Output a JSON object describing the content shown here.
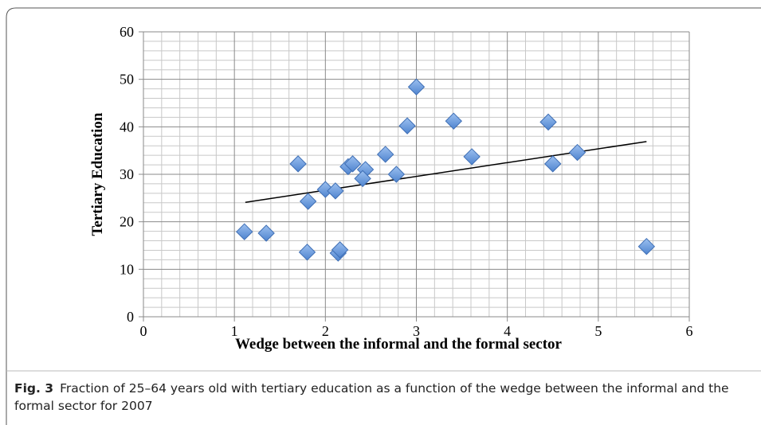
{
  "chart_data": {
    "type": "scatter",
    "xlabel": "Wedge between the informal and the formal sector",
    "ylabel": "Tertiary Education",
    "x": [
      1.11,
      1.35,
      1.8,
      1.7,
      1.81,
      2.0,
      2.11,
      2.14,
      2.16,
      2.25,
      2.3,
      2.44,
      2.41,
      2.66,
      2.78,
      2.9,
      3.0,
      3.41,
      3.61,
      4.45,
      4.5,
      4.77,
      5.53
    ],
    "values": [
      17.9,
      17.6,
      13.6,
      32.2,
      24.3,
      26.8,
      26.5,
      13.4,
      14.1,
      31.6,
      32.2,
      31.0,
      29.1,
      34.2,
      30.0,
      40.2,
      48.4,
      41.2,
      33.7,
      41.0,
      32.2,
      34.6,
      14.8
    ],
    "color": "#6a9be0",
    "trendline": {
      "x": [
        1.12,
        5.53
      ],
      "y": [
        24.1,
        36.9
      ],
      "color": "#000000"
    },
    "xlim": [
      0,
      6
    ],
    "ylim": [
      0,
      60
    ],
    "xticks": [
      0,
      1,
      2,
      3,
      4,
      5,
      6
    ],
    "yticks": [
      0,
      10,
      20,
      30,
      40,
      50,
      60
    ],
    "xminor": [
      0.2,
      0.4,
      0.6,
      0.8,
      1.2,
      1.4,
      1.6,
      1.8,
      2.2,
      2.4,
      2.6,
      2.8,
      3.2,
      3.4,
      3.6,
      3.8,
      4.2,
      4.4,
      4.6,
      4.8,
      5.2,
      5.4,
      5.6,
      5.8
    ],
    "yminor": [
      2,
      4,
      6,
      8,
      12,
      14,
      16,
      18,
      22,
      24,
      26,
      28,
      32,
      34,
      36,
      38,
      42,
      44,
      46,
      48,
      52,
      54,
      56,
      58
    ],
    "grid": true
  },
  "caption": {
    "label": "Fig. 3",
    "text": "Fraction of 25–64 years old with tertiary education as a function of the wedge between the informal and the formal sector for 2007"
  }
}
